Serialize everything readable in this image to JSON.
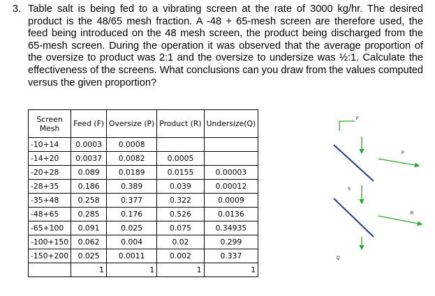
{
  "problem": {
    "number": "3.",
    "text": "Table salt is being fed to a vibrating screen at the rate of 3000 kg/hr. The desired product is the 48/65 mesh fraction. A -48 + 65-mesh screen are therefore used, the feed being introduced on the 48 mesh screen, the product being discharged from the 65-mesh screen. During the operation it was observed that the average proportion of the oversize to product was 2:1 and the oversize to undersize was ½:1. Calculate the effectiveness of the screens. What conclusions can you draw from the values computed versus the given proportion?"
  },
  "table": {
    "headers": {
      "mesh_line1": "Screen",
      "mesh_line2": "Mesh",
      "feed": "Feed (F)",
      "oversize": "Oversize (P)",
      "product": "Product (R)",
      "undersize": "Undersize(Q)"
    },
    "rows": [
      {
        "mesh": "-10+14",
        "feed": "0.0003",
        "oversize": "0.0008",
        "product": "",
        "undersize": ""
      },
      {
        "mesh": "-14+20",
        "feed": "0.0037",
        "oversize": "0.0082",
        "product": "0.0005",
        "undersize": ""
      },
      {
        "mesh": "-20+28",
        "feed": "0.089",
        "oversize": "0.0189",
        "product": "0.0155",
        "undersize": "0.00003"
      },
      {
        "mesh": "-28+35",
        "feed": "0.186",
        "oversize": "0.389",
        "product": "0.039",
        "undersize": "0.00012"
      },
      {
        "mesh": "-35+48",
        "feed": "0.258",
        "oversize": "0.377",
        "product": "0.322",
        "undersize": "0.0009"
      },
      {
        "mesh": "-48+65",
        "feed": "0.285",
        "oversize": "0.176",
        "product": "0.526",
        "undersize": "0.0136"
      },
      {
        "mesh": "-65+100",
        "feed": "0.091",
        "oversize": "0.025",
        "product": "0.075",
        "undersize": "0.34935"
      },
      {
        "mesh": "-100+150",
        "feed": "0.062",
        "oversize": "0.004",
        "product": "0.02",
        "undersize": "0.299"
      },
      {
        "mesh": "-150+200",
        "feed": "0.025",
        "oversize": "0.0011",
        "product": "0.002",
        "undersize": "0.337"
      }
    ],
    "totals": {
      "mesh": "",
      "feed": "1",
      "oversize": "1",
      "product": "1",
      "undersize": "1"
    }
  },
  "diagram": {
    "labels": {
      "feed": "F",
      "oversize": "P",
      "undersize_top": "S",
      "product": "R",
      "undersize": "Q"
    },
    "line_color": "#1f3c88",
    "arrow_color": "#22aa22"
  }
}
